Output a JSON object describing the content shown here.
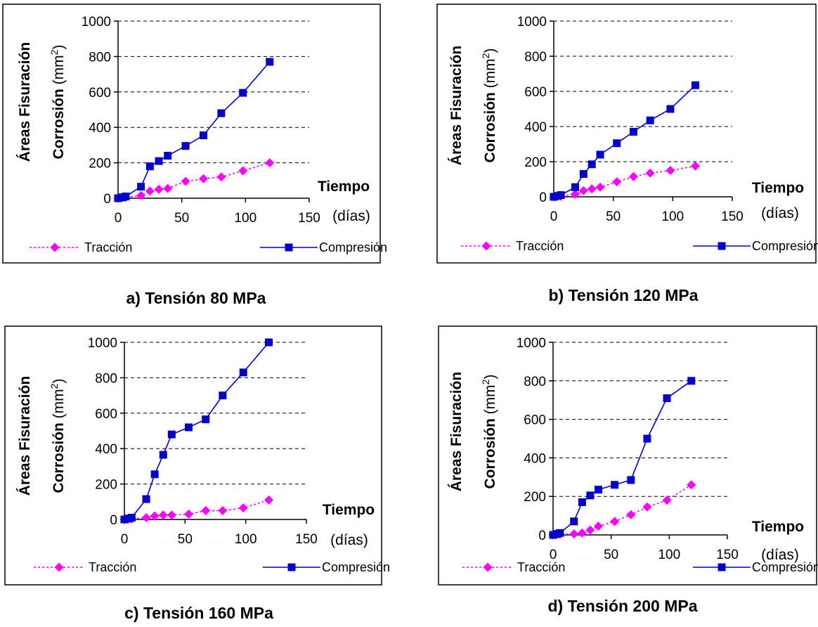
{
  "chart_data": [
    {
      "type": "line",
      "caption": "a) Tensión 80 MPa",
      "ylabel_line1": "Áreas Fisuración",
      "ylabel_line2": "Corrosión (mm²)",
      "xlabel_line1": "Tiempo",
      "xlabel_line2": "(días)",
      "xlim": [
        0,
        150
      ],
      "ylim": [
        0,
        1000
      ],
      "xticks": [
        0,
        50,
        100,
        150
      ],
      "yticks": [
        0,
        200,
        400,
        600,
        800,
        1000
      ],
      "series": [
        {
          "name": "Tracción",
          "color": "#ff00ff",
          "marker": "diamond",
          "dashed": true,
          "x": [
            0,
            3,
            6,
            18,
            25,
            32,
            39,
            53,
            67,
            81,
            98,
            119
          ],
          "y": [
            0,
            3,
            5,
            15,
            40,
            50,
            55,
            95,
            110,
            120,
            155,
            200
          ]
        },
        {
          "name": "Compresión",
          "color": "#0000cc",
          "marker": "square",
          "dashed": false,
          "x": [
            0,
            3,
            6,
            18,
            25,
            32,
            39,
            53,
            67,
            81,
            98,
            119
          ],
          "y": [
            0,
            5,
            10,
            65,
            180,
            210,
            240,
            295,
            355,
            480,
            595,
            770
          ]
        }
      ]
    },
    {
      "type": "line",
      "caption": "b) Tensión 120 MPa",
      "ylabel_line1": "Áreas Fisuración",
      "ylabel_line2": "Corrosión (mm²)",
      "xlabel_line1": "Tiempo",
      "xlabel_line2": "(días)",
      "xlim": [
        0,
        150
      ],
      "ylim": [
        0,
        1000
      ],
      "xticks": [
        0,
        50,
        100,
        150
      ],
      "yticks": [
        0,
        200,
        400,
        600,
        800,
        1000
      ],
      "series": [
        {
          "name": "Tracción",
          "color": "#ff00ff",
          "marker": "diamond",
          "dashed": true,
          "x": [
            0,
            3,
            6,
            18,
            25,
            32,
            39,
            53,
            67,
            81,
            98,
            119
          ],
          "y": [
            0,
            2,
            4,
            15,
            35,
            45,
            55,
            85,
            115,
            135,
            150,
            175
          ]
        },
        {
          "name": "Compresión",
          "color": "#0000cc",
          "marker": "square",
          "dashed": false,
          "x": [
            0,
            3,
            6,
            18,
            25,
            32,
            39,
            53,
            67,
            81,
            98,
            119
          ],
          "y": [
            0,
            5,
            10,
            55,
            130,
            185,
            240,
            305,
            370,
            435,
            500,
            635
          ]
        }
      ]
    },
    {
      "type": "line",
      "caption": "c) Tensión 160 MPa",
      "ylabel_line1": "Áreas Fisuración",
      "ylabel_line2": "Corrosión (mm²)",
      "xlabel_line1": "Tiempo",
      "xlabel_line2": "(días)",
      "xlim": [
        0,
        150
      ],
      "ylim": [
        0,
        1000
      ],
      "xticks": [
        0,
        50,
        100,
        150
      ],
      "yticks": [
        0,
        200,
        400,
        600,
        800,
        1000
      ],
      "series": [
        {
          "name": "Tracción",
          "color": "#ff00ff",
          "marker": "diamond",
          "dashed": true,
          "x": [
            0,
            3,
            6,
            18,
            25,
            32,
            39,
            53,
            67,
            81,
            98,
            119
          ],
          "y": [
            0,
            2,
            3,
            10,
            20,
            25,
            25,
            30,
            50,
            50,
            65,
            110
          ]
        },
        {
          "name": "Compresión",
          "color": "#0000cc",
          "marker": "square",
          "dashed": false,
          "x": [
            0,
            3,
            6,
            18,
            25,
            32,
            39,
            53,
            67,
            81,
            98,
            119
          ],
          "y": [
            0,
            5,
            10,
            115,
            255,
            365,
            480,
            520,
            565,
            700,
            830,
            1000
          ]
        }
      ]
    },
    {
      "type": "line",
      "caption": "d) Tensión 200 MPa",
      "ylabel_line1": "Áreas Fisuración",
      "ylabel_line2": "Corrosión (mm²)",
      "xlabel_line1": "Tiempo",
      "xlabel_line2": "(días)",
      "xlim": [
        0,
        150
      ],
      "ylim": [
        0,
        1000
      ],
      "xticks": [
        0,
        50,
        100,
        150
      ],
      "yticks": [
        0,
        200,
        400,
        600,
        800,
        1000
      ],
      "series": [
        {
          "name": "Tracción",
          "color": "#ff00ff",
          "marker": "diamond",
          "dashed": true,
          "x": [
            0,
            3,
            6,
            18,
            25,
            32,
            39,
            53,
            67,
            81,
            98,
            119
          ],
          "y": [
            0,
            2,
            3,
            5,
            10,
            25,
            45,
            70,
            105,
            145,
            180,
            260
          ]
        },
        {
          "name": "Compresión",
          "color": "#0000cc",
          "marker": "square",
          "dashed": false,
          "x": [
            0,
            3,
            6,
            18,
            25,
            32,
            39,
            53,
            67,
            81,
            98,
            119
          ],
          "y": [
            0,
            5,
            10,
            70,
            170,
            205,
            235,
            260,
            285,
            500,
            710,
            800
          ]
        }
      ]
    }
  ]
}
